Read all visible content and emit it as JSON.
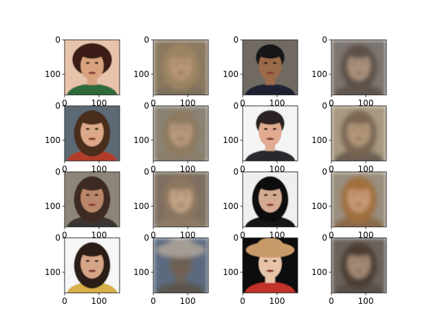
{
  "figure": {
    "x_ticks": [
      "0",
      "100"
    ],
    "y_ticks": [
      "0",
      "100"
    ],
    "image_extent": 160,
    "panels": [
      {
        "kind": "photo",
        "hair": "#3a1f14",
        "skin": "#d9a27f",
        "bg": "#e8c3ab",
        "shirt": "#2f6b3b",
        "hair_shape": "curly"
      },
      {
        "kind": "recon",
        "hair": "#9b8460",
        "skin": "#b89577",
        "bg": "#8b7860",
        "shirt": "#7d6f5c",
        "hair_shape": "long"
      },
      {
        "kind": "photo",
        "hair": "#141414",
        "skin": "#9a6a4a",
        "bg": "#6f6a62",
        "shirt": "#1a2430",
        "hair_shape": "short"
      },
      {
        "kind": "recon",
        "hair": "#5d5148",
        "skin": "#a9917c",
        "bg": "#7c7570",
        "shirt": "#5e5650",
        "hair_shape": "long"
      },
      {
        "kind": "photo",
        "hair": "#4a2d1c",
        "skin": "#dba989",
        "bg": "#5c6b75",
        "shirt": "#b23c2b",
        "hair_shape": "long"
      },
      {
        "kind": "recon",
        "hair": "#8e7a60",
        "skin": "#b89a7e",
        "bg": "#8a8272",
        "shirt": "#8a7e6c",
        "hair_shape": "long"
      },
      {
        "kind": "photo",
        "hair": "#2a2220",
        "skin": "#e0ab8f",
        "bg": "#f4f4f4",
        "shirt": "#2a2a2e",
        "hair_shape": "short"
      },
      {
        "kind": "recon",
        "hair": "#7a6652",
        "skin": "#b2977a",
        "bg": "#a89a80",
        "shirt": "#6d6152",
        "hair_shape": "long"
      },
      {
        "kind": "photo",
        "hair": "#3d2c22",
        "skin": "#b9866a",
        "bg": "#8c8578",
        "shirt": "#3a3530",
        "hair_shape": "long"
      },
      {
        "kind": "recon",
        "hair": "#8b7660",
        "skin": "#c2a486",
        "bg": "#7e6e5e",
        "shirt": "#8a7a66",
        "hair_shape": "long"
      },
      {
        "kind": "photo",
        "hair": "#0f0f0f",
        "skin": "#d4aa92",
        "bg": "#efefef",
        "shirt": "#151515",
        "hair_shape": "long"
      },
      {
        "kind": "recon",
        "hair": "#a0703c",
        "skin": "#c79a74",
        "bg": "#9a8e7e",
        "shirt": "#8a6a48",
        "hair_shape": "long"
      },
      {
        "kind": "photo",
        "hair": "#2a1a12",
        "skin": "#d6a487",
        "bg": "#f6f6f6",
        "shirt": "#d8b04a",
        "hair_shape": "long"
      },
      {
        "kind": "recon",
        "hair": "#a39d94",
        "skin": "#6e6254",
        "bg": "#5b6a80",
        "shirt": "#5a5650",
        "hair_shape": "hat"
      },
      {
        "kind": "photo",
        "hair": "#c89a6a",
        "skin": "#e7c3a8",
        "bg": "#111111",
        "shirt": "#c0302a",
        "hair_shape": "hat"
      },
      {
        "kind": "recon",
        "hair": "#4c3c30",
        "skin": "#a38a74",
        "bg": "#6a625a",
        "shirt": "#58504a",
        "hair_shape": "long"
      }
    ]
  }
}
